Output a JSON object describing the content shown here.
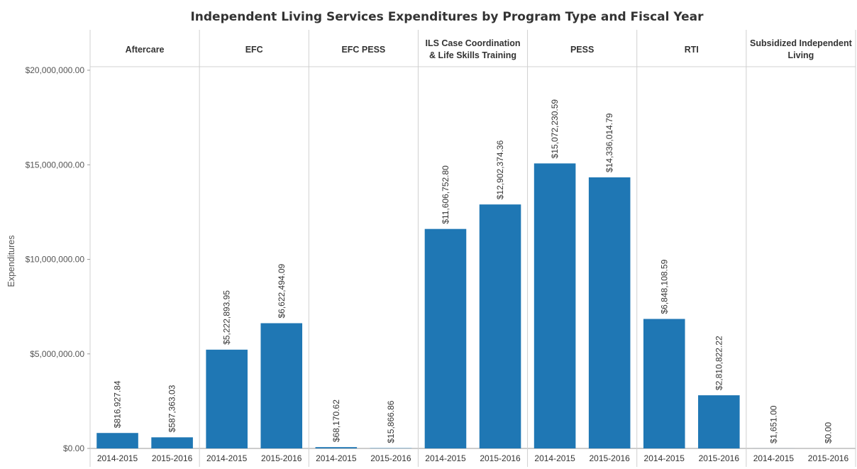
{
  "chart_data": {
    "type": "bar",
    "title": "Independent Living Services Expenditures by Program Type and Fiscal Year",
    "ylabel": "Expenditures",
    "ylim": [
      0,
      20000000
    ],
    "yticks": [
      {
        "value": 0,
        "label": "$0.00"
      },
      {
        "value": 5000000,
        "label": "$5,000,000.00"
      },
      {
        "value": 10000000,
        "label": "$10,000,000.00"
      },
      {
        "value": 15000000,
        "label": "$15,000,000.00"
      },
      {
        "value": 20000000,
        "label": "$20,000,000.00"
      }
    ],
    "grid": false,
    "color": "#1f77b4",
    "panels": [
      {
        "name": "Aftercare",
        "header_lines": [
          "Aftercare"
        ],
        "bars": [
          {
            "x": "2014-2015",
            "value": 816927.84,
            "label": "$816,927.84"
          },
          {
            "x": "2015-2016",
            "value": 587363.03,
            "label": "$587,363.03"
          }
        ]
      },
      {
        "name": "EFC",
        "header_lines": [
          "EFC"
        ],
        "bars": [
          {
            "x": "2014-2015",
            "value": 5222893.95,
            "label": "$5,222,893.95"
          },
          {
            "x": "2015-2016",
            "value": 6622494.09,
            "label": "$6,622,494.09"
          }
        ]
      },
      {
        "name": "EFC PESS",
        "header_lines": [
          "EFC PESS"
        ],
        "bars": [
          {
            "x": "2014-2015",
            "value": 68170.62,
            "label": "$68,170.62"
          },
          {
            "x": "2015-2016",
            "value": 15866.86,
            "label": "$15,866.86"
          }
        ]
      },
      {
        "name": "ILS Case Coordination & Life Skills Training",
        "header_lines": [
          "ILS Case Coordination",
          "& Life Skills Training"
        ],
        "bars": [
          {
            "x": "2014-2015",
            "value": 11606752.8,
            "label": "$11,606,752.80"
          },
          {
            "x": "2015-2016",
            "value": 12902374.36,
            "label": "$12,902,374.36"
          }
        ]
      },
      {
        "name": "PESS",
        "header_lines": [
          "PESS"
        ],
        "bars": [
          {
            "x": "2014-2015",
            "value": 15072230.59,
            "label": "$15,072,230.59"
          },
          {
            "x": "2015-2016",
            "value": 14336014.79,
            "label": "$14,336,014.79"
          }
        ]
      },
      {
        "name": "RTI",
        "header_lines": [
          "RTI"
        ],
        "bars": [
          {
            "x": "2014-2015",
            "value": 6848108.59,
            "label": "$6,848,108.59"
          },
          {
            "x": "2015-2016",
            "value": 2810822.22,
            "label": "$2,810,822.22"
          }
        ]
      },
      {
        "name": "Subsidized Independent Living",
        "header_lines": [
          "Subsidized Independent",
          "Living"
        ],
        "bars": [
          {
            "x": "2014-2015",
            "value": 1651.0,
            "label": "$1,651.00"
          },
          {
            "x": "2015-2016",
            "value": 0.0,
            "label": "$0.00"
          }
        ]
      }
    ]
  }
}
